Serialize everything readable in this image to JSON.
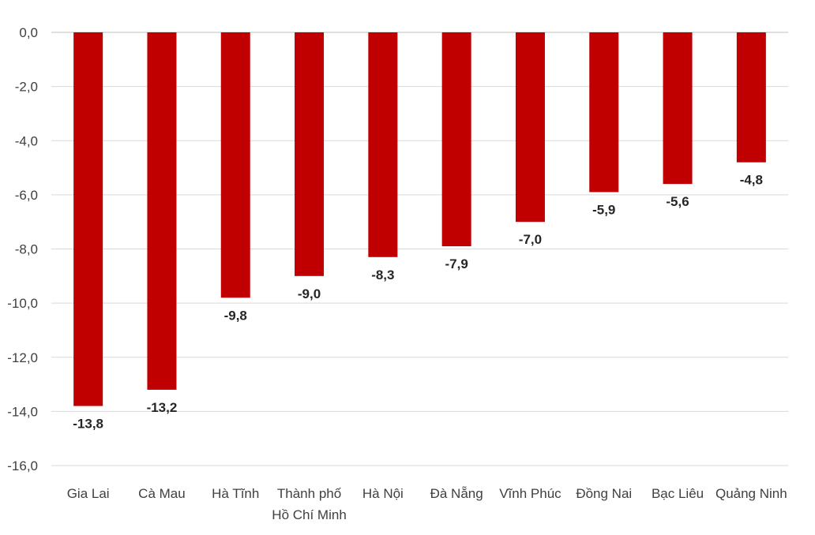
{
  "chart_data": {
    "type": "bar",
    "title": "",
    "xlabel": "",
    "ylabel": "",
    "ylim": [
      -16,
      0
    ],
    "y_ticks": [
      0,
      -2,
      -4,
      -6,
      -8,
      -10,
      -12,
      -14,
      -16
    ],
    "y_tick_labels": [
      "0,0",
      "-2,0",
      "-4,0",
      "-6,0",
      "-8,0",
      "-10,0",
      "-12,0",
      "-14,0",
      "-16,0"
    ],
    "grid": true,
    "legend": "none",
    "categories": [
      "Gia Lai",
      "Cà Mau",
      "Hà Tĩnh",
      "Thành phố\nHồ Chí Minh",
      "Hà Nội",
      "Đà Nẵng",
      "Vĩnh Phúc",
      "Đồng Nai",
      "Bạc Liêu",
      "Quảng Ninh"
    ],
    "values": [
      -13.8,
      -13.2,
      -9.8,
      -9.0,
      -8.3,
      -7.9,
      -7.0,
      -5.9,
      -5.6,
      -4.8
    ],
    "data_labels": [
      "-13,8",
      "-13,2",
      "-9,8",
      "-9,0",
      "-8,3",
      "-7,9",
      "-7,0",
      "-5,9",
      "-5,6",
      "-4,8"
    ],
    "colors": {
      "bar": "#c00000",
      "grid": "#d9d9d9",
      "text": "#404040"
    }
  }
}
